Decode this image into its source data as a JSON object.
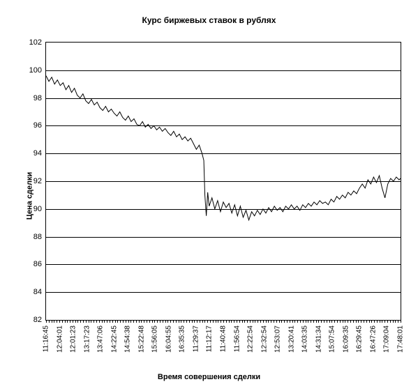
{
  "chart": {
    "type": "line",
    "title": "Курс биржевых ставок в рублях",
    "title_fontsize": 12,
    "title_fontweight": "bold",
    "xlabel": "Время совершения сделки",
    "ylabel": "Цена сделки",
    "label_fontsize": 11,
    "label_fontweight": "bold",
    "background_color": "#ffffff",
    "border_color": "#000000",
    "grid_color": "#000000",
    "series_color": "#000000",
    "line_width": 1,
    "ylim": [
      82,
      102
    ],
    "ytick_step": 2,
    "yticks": [
      82,
      84,
      86,
      88,
      90,
      92,
      94,
      96,
      98,
      100,
      102
    ],
    "xticks": [
      "11:16:45",
      "12:04:01",
      "12:01:23",
      "13:17:23",
      "13:47:06",
      "14:22:45",
      "14:54:38",
      "15:22:48",
      "15:56:05",
      "16:04:55",
      "16:35:35",
      "11:29:37",
      "11:12:17",
      "11:40:48",
      "11:56:54",
      "12:22:54",
      "12:32:54",
      "12:53:07",
      "13:20:41",
      "14:03:35",
      "14:31:34",
      "15:07:54",
      "16:09:35",
      "16:29:45",
      "16:47:26",
      "17:09:04",
      "17:48:01"
    ],
    "dense_ticks": 135,
    "series": [
      {
        "x": 0.0,
        "y": 99.6
      },
      {
        "x": 0.008,
        "y": 99.2
      },
      {
        "x": 0.016,
        "y": 99.5
      },
      {
        "x": 0.024,
        "y": 99.0
      },
      {
        "x": 0.032,
        "y": 99.3
      },
      {
        "x": 0.04,
        "y": 98.9
      },
      {
        "x": 0.048,
        "y": 99.1
      },
      {
        "x": 0.056,
        "y": 98.6
      },
      {
        "x": 0.064,
        "y": 98.9
      },
      {
        "x": 0.072,
        "y": 98.4
      },
      {
        "x": 0.08,
        "y": 98.7
      },
      {
        "x": 0.088,
        "y": 98.2
      },
      {
        "x": 0.096,
        "y": 98.0
      },
      {
        "x": 0.104,
        "y": 98.3
      },
      {
        "x": 0.112,
        "y": 97.8
      },
      {
        "x": 0.12,
        "y": 97.6
      },
      {
        "x": 0.128,
        "y": 97.9
      },
      {
        "x": 0.136,
        "y": 97.5
      },
      {
        "x": 0.144,
        "y": 97.7
      },
      {
        "x": 0.152,
        "y": 97.3
      },
      {
        "x": 0.16,
        "y": 97.1
      },
      {
        "x": 0.168,
        "y": 97.4
      },
      {
        "x": 0.176,
        "y": 97.0
      },
      {
        "x": 0.184,
        "y": 97.2
      },
      {
        "x": 0.192,
        "y": 96.9
      },
      {
        "x": 0.2,
        "y": 96.7
      },
      {
        "x": 0.208,
        "y": 97.0
      },
      {
        "x": 0.216,
        "y": 96.6
      },
      {
        "x": 0.224,
        "y": 96.4
      },
      {
        "x": 0.232,
        "y": 96.7
      },
      {
        "x": 0.24,
        "y": 96.3
      },
      {
        "x": 0.248,
        "y": 96.5
      },
      {
        "x": 0.256,
        "y": 96.1
      },
      {
        "x": 0.264,
        "y": 96.0
      },
      {
        "x": 0.272,
        "y": 96.3
      },
      {
        "x": 0.28,
        "y": 95.9
      },
      {
        "x": 0.288,
        "y": 96.1
      },
      {
        "x": 0.296,
        "y": 95.8
      },
      {
        "x": 0.304,
        "y": 96.0
      },
      {
        "x": 0.312,
        "y": 95.7
      },
      {
        "x": 0.32,
        "y": 95.9
      },
      {
        "x": 0.328,
        "y": 95.6
      },
      {
        "x": 0.336,
        "y": 95.8
      },
      {
        "x": 0.344,
        "y": 95.5
      },
      {
        "x": 0.352,
        "y": 95.3
      },
      {
        "x": 0.36,
        "y": 95.6
      },
      {
        "x": 0.368,
        "y": 95.2
      },
      {
        "x": 0.376,
        "y": 95.4
      },
      {
        "x": 0.384,
        "y": 95.0
      },
      {
        "x": 0.392,
        "y": 95.2
      },
      {
        "x": 0.4,
        "y": 94.9
      },
      {
        "x": 0.408,
        "y": 95.1
      },
      {
        "x": 0.416,
        "y": 94.7
      },
      {
        "x": 0.424,
        "y": 94.3
      },
      {
        "x": 0.432,
        "y": 94.6
      },
      {
        "x": 0.44,
        "y": 94.0
      },
      {
        "x": 0.445,
        "y": 93.5
      },
      {
        "x": 0.448,
        "y": 91.0
      },
      {
        "x": 0.452,
        "y": 89.5
      },
      {
        "x": 0.456,
        "y": 91.2
      },
      {
        "x": 0.46,
        "y": 90.2
      },
      {
        "x": 0.468,
        "y": 90.8
      },
      {
        "x": 0.476,
        "y": 90.0
      },
      {
        "x": 0.484,
        "y": 90.6
      },
      {
        "x": 0.492,
        "y": 89.8
      },
      {
        "x": 0.5,
        "y": 90.5
      },
      {
        "x": 0.508,
        "y": 90.1
      },
      {
        "x": 0.516,
        "y": 90.4
      },
      {
        "x": 0.524,
        "y": 89.7
      },
      {
        "x": 0.532,
        "y": 90.3
      },
      {
        "x": 0.54,
        "y": 89.5
      },
      {
        "x": 0.548,
        "y": 90.2
      },
      {
        "x": 0.556,
        "y": 89.4
      },
      {
        "x": 0.564,
        "y": 89.9
      },
      {
        "x": 0.572,
        "y": 89.2
      },
      {
        "x": 0.58,
        "y": 89.8
      },
      {
        "x": 0.588,
        "y": 89.5
      },
      {
        "x": 0.596,
        "y": 89.9
      },
      {
        "x": 0.604,
        "y": 89.6
      },
      {
        "x": 0.612,
        "y": 90.0
      },
      {
        "x": 0.62,
        "y": 89.7
      },
      {
        "x": 0.628,
        "y": 90.1
      },
      {
        "x": 0.636,
        "y": 89.8
      },
      {
        "x": 0.644,
        "y": 90.2
      },
      {
        "x": 0.652,
        "y": 89.9
      },
      {
        "x": 0.66,
        "y": 90.1
      },
      {
        "x": 0.668,
        "y": 89.8
      },
      {
        "x": 0.676,
        "y": 90.2
      },
      {
        "x": 0.684,
        "y": 90.0
      },
      {
        "x": 0.692,
        "y": 90.3
      },
      {
        "x": 0.7,
        "y": 90.0
      },
      {
        "x": 0.708,
        "y": 90.2
      },
      {
        "x": 0.716,
        "y": 89.9
      },
      {
        "x": 0.724,
        "y": 90.3
      },
      {
        "x": 0.732,
        "y": 90.1
      },
      {
        "x": 0.74,
        "y": 90.4
      },
      {
        "x": 0.748,
        "y": 90.2
      },
      {
        "x": 0.756,
        "y": 90.5
      },
      {
        "x": 0.764,
        "y": 90.3
      },
      {
        "x": 0.772,
        "y": 90.6
      },
      {
        "x": 0.78,
        "y": 90.4
      },
      {
        "x": 0.788,
        "y": 90.5
      },
      {
        "x": 0.796,
        "y": 90.3
      },
      {
        "x": 0.804,
        "y": 90.7
      },
      {
        "x": 0.812,
        "y": 90.5
      },
      {
        "x": 0.82,
        "y": 90.9
      },
      {
        "x": 0.828,
        "y": 90.7
      },
      {
        "x": 0.836,
        "y": 91.0
      },
      {
        "x": 0.844,
        "y": 90.8
      },
      {
        "x": 0.852,
        "y": 91.2
      },
      {
        "x": 0.86,
        "y": 91.0
      },
      {
        "x": 0.868,
        "y": 91.3
      },
      {
        "x": 0.876,
        "y": 91.1
      },
      {
        "x": 0.884,
        "y": 91.5
      },
      {
        "x": 0.892,
        "y": 91.8
      },
      {
        "x": 0.9,
        "y": 91.5
      },
      {
        "x": 0.908,
        "y": 92.1
      },
      {
        "x": 0.916,
        "y": 91.8
      },
      {
        "x": 0.924,
        "y": 92.3
      },
      {
        "x": 0.932,
        "y": 91.9
      },
      {
        "x": 0.94,
        "y": 92.4
      },
      {
        "x": 0.948,
        "y": 91.5
      },
      {
        "x": 0.956,
        "y": 90.8
      },
      {
        "x": 0.964,
        "y": 91.8
      },
      {
        "x": 0.972,
        "y": 92.2
      },
      {
        "x": 0.98,
        "y": 92.0
      },
      {
        "x": 0.988,
        "y": 92.3
      },
      {
        "x": 0.996,
        "y": 92.1
      },
      {
        "x": 1.0,
        "y": 92.2
      }
    ]
  }
}
